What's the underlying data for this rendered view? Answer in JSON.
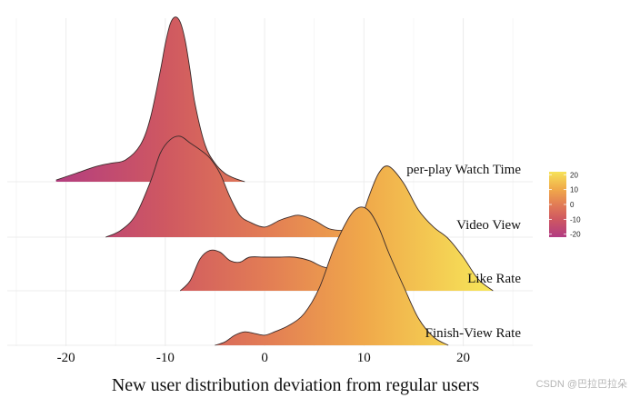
{
  "chart_data": {
    "type": "ridgeline",
    "title": "",
    "xlabel": "New user distribution deviation from regular users",
    "ylabel": "",
    "xlim": [
      -25,
      27
    ],
    "xticks": [
      -20,
      -10,
      0,
      10,
      20
    ],
    "xtick_labels": [
      "-20",
      "-10",
      "0",
      "10",
      "20"
    ],
    "grid": true,
    "color_scale": {
      "name": "plasma-like gradient",
      "range": [
        -22,
        22
      ],
      "stops": [
        {
          "value": -22,
          "color": "#b13b82"
        },
        {
          "value": -10,
          "color": "#cf5861"
        },
        {
          "value": 0,
          "color": "#e27c55"
        },
        {
          "value": 10,
          "color": "#f0a84a"
        },
        {
          "value": 22,
          "color": "#f6e258"
        }
      ],
      "legend_ticks": [
        20,
        10,
        0,
        -10,
        -20
      ],
      "legend_tick_labels": [
        "20",
        "10",
        "0",
        "-10",
        "-20"
      ],
      "legend_position": "right"
    },
    "series": [
      {
        "name": "per-play Watch Time",
        "x": [
          -21,
          -19,
          -17,
          -15.5,
          -14,
          -12.5,
          -11.5,
          -10.5,
          -10,
          -9.5,
          -9,
          -8.5,
          -8,
          -7.5,
          -7,
          -6,
          -5,
          -4,
          -3,
          -2
        ],
        "density": [
          0.01,
          0.05,
          0.09,
          0.11,
          0.13,
          0.22,
          0.38,
          0.66,
          0.82,
          0.94,
          0.98,
          0.95,
          0.84,
          0.66,
          0.46,
          0.22,
          0.11,
          0.05,
          0.02,
          0.0
        ]
      },
      {
        "name": "Video View",
        "x": [
          -16,
          -14.5,
          -13,
          -11.5,
          -10.5,
          -9.5,
          -8.5,
          -7.5,
          -6.5,
          -5.5,
          -4.5,
          -3.5,
          -2.5,
          -1.5,
          0,
          1.5,
          2.5,
          3.5,
          5,
          6.5,
          8,
          9.5,
          11,
          13
        ],
        "density": [
          0.0,
          0.04,
          0.13,
          0.33,
          0.5,
          0.58,
          0.6,
          0.56,
          0.52,
          0.47,
          0.38,
          0.24,
          0.13,
          0.09,
          0.06,
          0.1,
          0.12,
          0.13,
          0.1,
          0.05,
          0.04,
          0.05,
          0.03,
          0.0
        ]
      },
      {
        "name": "Like Rate",
        "x": [
          -8.5,
          -7.5,
          -6.5,
          -5.5,
          -4.5,
          -3.5,
          -2.5,
          -1.5,
          0,
          1.5,
          3,
          4.5,
          6,
          7.5,
          9,
          10.5,
          11.5,
          12.5,
          14,
          15.5,
          17,
          18.5,
          20,
          21.5,
          23
        ],
        "density": [
          0.0,
          0.06,
          0.19,
          0.24,
          0.23,
          0.18,
          0.17,
          0.2,
          0.2,
          0.2,
          0.2,
          0.18,
          0.14,
          0.14,
          0.3,
          0.56,
          0.7,
          0.74,
          0.64,
          0.48,
          0.38,
          0.31,
          0.2,
          0.07,
          0.0
        ]
      },
      {
        "name": "Finish-View Rate",
        "x": [
          -5,
          -4,
          -3,
          -2,
          -1,
          0,
          1,
          2.5,
          4,
          5.5,
          7,
          8.5,
          9.5,
          10.5,
          11.5,
          12.5,
          14,
          15.5,
          17,
          18.5
        ],
        "density": [
          0.0,
          0.02,
          0.06,
          0.08,
          0.07,
          0.06,
          0.08,
          0.12,
          0.19,
          0.34,
          0.58,
          0.76,
          0.82,
          0.8,
          0.7,
          0.55,
          0.35,
          0.16,
          0.05,
          0.0
        ]
      }
    ]
  },
  "watermark": "CSDN @巴拉巴拉朵"
}
